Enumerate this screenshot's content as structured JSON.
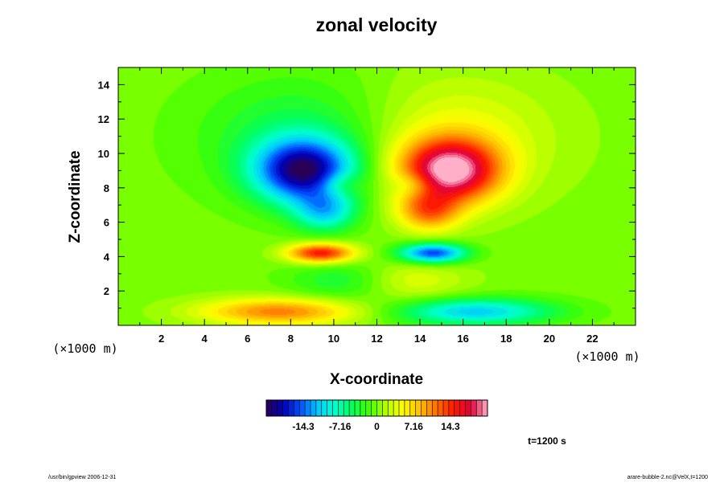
{
  "title": "zonal velocity",
  "footer": {
    "left": "/usr/bin/gpview 2006-12-31",
    "right": "arare-bubble-2.nc@VelX,t=1200"
  },
  "time_label": "t=1200 s",
  "colorbar": {
    "tick_labels": [
      "-14.3",
      "-7.16",
      "0",
      "7.16",
      "14.3"
    ],
    "tick_values": [
      -14.3,
      -7.16,
      0,
      7.16,
      14.3
    ],
    "range": [
      -21.5,
      21.5
    ],
    "colors": [
      "#2a0055",
      "#0000b8",
      "#0050ff",
      "#00c8ff",
      "#00ffd0",
      "#00ff60",
      "#40ff00",
      "#b0ff00",
      "#ffff00",
      "#ffc000",
      "#ff7000",
      "#ff1a00",
      "#e0003a",
      "#ffb0c8"
    ]
  },
  "chart_data": {
    "type": "heatmap",
    "title": "zonal velocity",
    "xlabel": "X-coordinate",
    "ylabel": "Z-coordinate",
    "x_unit": "(×1000 m)",
    "y_unit": "(×1000 m)",
    "xlim": [
      0,
      24
    ],
    "ylim": [
      0,
      15
    ],
    "x_ticks": [
      2,
      4,
      6,
      8,
      10,
      12,
      14,
      16,
      18,
      20,
      22
    ],
    "y_ticks": [
      2,
      4,
      6,
      8,
      10,
      12,
      14
    ],
    "value_range": [
      -21.5,
      21.5
    ],
    "features": [
      {
        "x": 8.6,
        "z": 9.0,
        "value": -19,
        "sx": 1.6,
        "sz": 1.3
      },
      {
        "x": 15.4,
        "z": 9.0,
        "value": 21,
        "sx": 1.6,
        "sz": 1.3
      },
      {
        "x": 9.4,
        "z": 4.2,
        "value": 16,
        "sx": 1.1,
        "sz": 0.4
      },
      {
        "x": 14.6,
        "z": 4.2,
        "value": -16,
        "sx": 1.1,
        "sz": 0.4
      },
      {
        "x": 9.6,
        "z": 6.6,
        "value": -9,
        "sx": 1.0,
        "sz": 0.8
      },
      {
        "x": 14.4,
        "z": 6.6,
        "value": 10,
        "sx": 1.0,
        "sz": 0.8
      },
      {
        "x": 7.5,
        "z": 0.8,
        "value": 11,
        "sx": 2.6,
        "sz": 0.55
      },
      {
        "x": 16.5,
        "z": 0.8,
        "value": -11,
        "sx": 2.6,
        "sz": 0.55
      },
      {
        "x": 10.3,
        "z": 8.2,
        "value": 4,
        "sx": 0.7,
        "sz": 0.5
      },
      {
        "x": 13.7,
        "z": 8.2,
        "value": -4,
        "sx": 0.7,
        "sz": 0.5
      },
      {
        "x": 9.0,
        "z": 11.0,
        "value": -5,
        "sx": 3.5,
        "sz": 2.5
      },
      {
        "x": 15.0,
        "z": 11.0,
        "value": 5,
        "sx": 3.5,
        "sz": 2.5
      },
      {
        "x": 10.5,
        "z": 2.6,
        "value": -4,
        "sx": 1.8,
        "sz": 0.9
      },
      {
        "x": 13.5,
        "z": 2.6,
        "value": 4,
        "sx": 1.8,
        "sz": 0.9
      }
    ]
  }
}
